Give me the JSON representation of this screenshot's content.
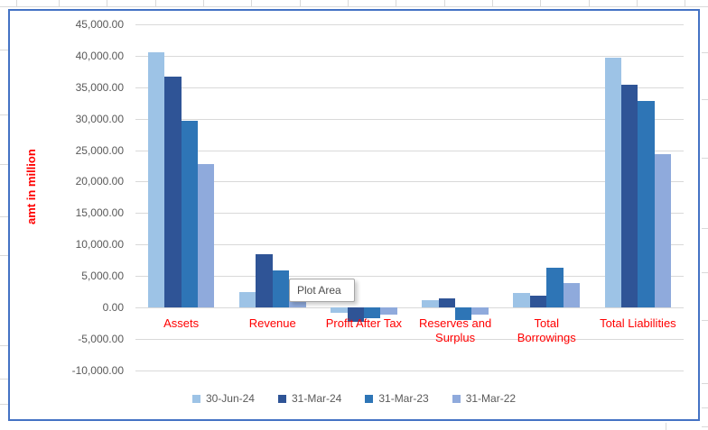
{
  "chart": {
    "tooltip": "Plot Area",
    "axis_title": "amt in million",
    "y_tick_labels": [
      "45,000.00",
      "40,000.00",
      "35,000.00",
      "30,000.00",
      "25,000.00",
      "20,000.00",
      "15,000.00",
      "10,000.00",
      "5,000.00",
      "0.00",
      "-5,000.00",
      "-10,000.00"
    ]
  },
  "chart_data": {
    "type": "bar",
    "title": "",
    "xlabel": "",
    "ylabel": "amt in million",
    "categories": [
      "Assets",
      "Revenue",
      "Profit After Tax",
      "Reserves and Surplus",
      "Total Borrowings",
      "Total Liabilities"
    ],
    "category_display_lines": [
      [
        "Assets"
      ],
      [
        "Revenue"
      ],
      [
        "Profit After Tax"
      ],
      [
        "Reserves and",
        "Surplus"
      ],
      [
        "Total",
        "Borrowings"
      ],
      [
        "Total Liabilities"
      ]
    ],
    "series": [
      {
        "name": "30-Jun-24",
        "color": "#9DC3E6",
        "values": [
          40600,
          2400,
          -900,
          1100,
          2300,
          39700
        ]
      },
      {
        "name": "31-Mar-24",
        "color": "#2F5496",
        "values": [
          36700,
          8400,
          -2300,
          1400,
          1800,
          35400
        ]
      },
      {
        "name": "31-Mar-23",
        "color": "#2E75B6",
        "values": [
          29600,
          5900,
          -1700,
          -2000,
          6300,
          32800
        ]
      },
      {
        "name": "31-Mar-22",
        "color": "#8FAADC",
        "values": [
          22800,
          1300,
          -1200,
          -1100,
          3800,
          24300
        ]
      }
    ],
    "ylim": [
      -10000,
      45000
    ],
    "ytick_step": 5000,
    "grid": true,
    "legend_position": "bottom",
    "value_axis_label_color": "#595959",
    "category_axis_label_color": "#FF0000",
    "axis_title_color": "#FF0000",
    "tooltip_text": "Plot Area"
  }
}
